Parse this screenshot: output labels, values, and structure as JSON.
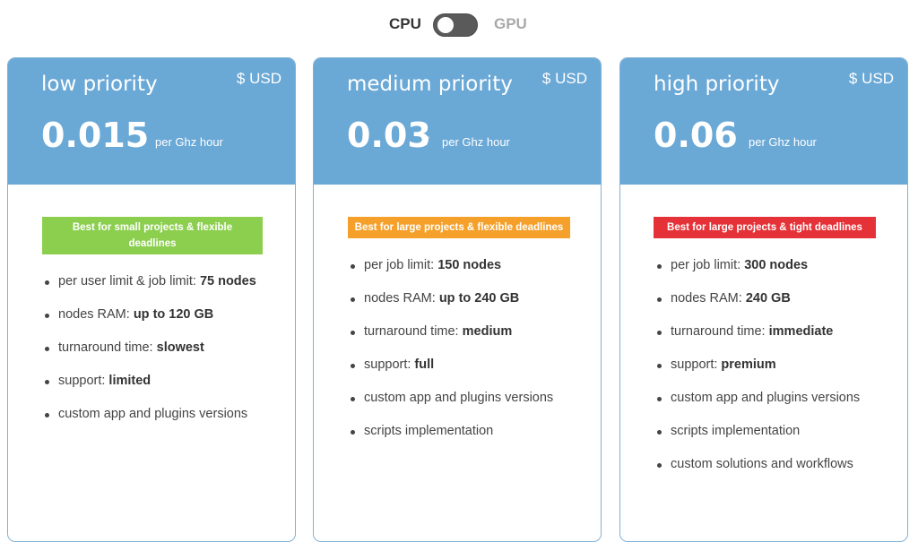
{
  "toggle": {
    "left_label": "CPU",
    "right_label": "GPU",
    "selected": "CPU"
  },
  "colors": {
    "header": "#6aa8d6",
    "badge_low": "#8ccf4f",
    "badge_medium": "#f5a02a",
    "badge_high": "#e53238"
  },
  "cards": [
    {
      "tier": "low priority",
      "currency": "$ USD",
      "price": "0.015",
      "slash": "/",
      "unit": "per Ghz hour",
      "badge": "Best for small projects & flexible deadlines",
      "features": [
        {
          "label": "per user limit & job limit: ",
          "value": "75 nodes"
        },
        {
          "label": "nodes RAM: ",
          "value": "up to 120 GB"
        },
        {
          "label": "turnaround time: ",
          "value": "slowest"
        },
        {
          "label": "support: ",
          "value": "limited"
        },
        {
          "label": "custom app and plugins versions",
          "value": ""
        }
      ]
    },
    {
      "tier": "medium priority",
      "currency": "$ USD",
      "price": "0.03",
      "slash": "/",
      "unit": "per Ghz hour",
      "badge": "Best for large projects & flexible deadlines",
      "features": [
        {
          "label": "per job limit: ",
          "value": "150 nodes"
        },
        {
          "label": "nodes RAM: ",
          "value": "up to 240 GB"
        },
        {
          "label": "turnaround time: ",
          "value": "medium"
        },
        {
          "label": "support: ",
          "value": "full"
        },
        {
          "label": "custom app and plugins versions",
          "value": ""
        },
        {
          "label": "scripts implementation",
          "value": ""
        }
      ]
    },
    {
      "tier": "high priority",
      "currency": "$ USD",
      "price": "0.06",
      "slash": "/",
      "unit": "per Ghz hour",
      "badge": "Best for large projects & tight deadlines",
      "features": [
        {
          "label": "per job limit: ",
          "value": "300 nodes"
        },
        {
          "label": "nodes RAM: ",
          "value": "240 GB"
        },
        {
          "label": "turnaround time: ",
          "value": "immediate"
        },
        {
          "label": "support: ",
          "value": "premium"
        },
        {
          "label": "custom app and plugins versions",
          "value": ""
        },
        {
          "label": "scripts implementation",
          "value": ""
        },
        {
          "label": "custom solutions and workflows",
          "value": ""
        }
      ]
    }
  ]
}
